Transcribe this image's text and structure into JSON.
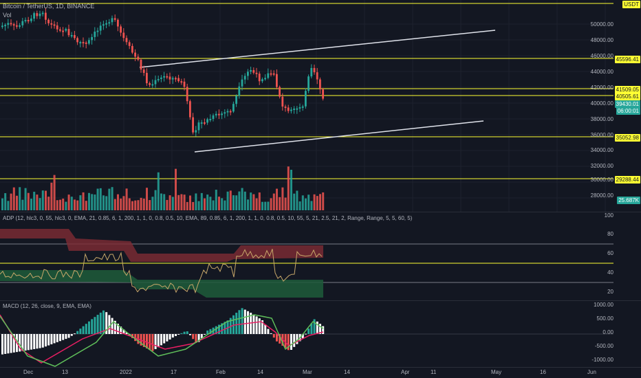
{
  "main": {
    "title": "Bitcoin / TetherUS, 1D, BINANCE",
    "vol_label": "Vol",
    "currency": "USDT",
    "price_ticks": [
      "50000.00",
      "48000.00",
      "46000.00",
      "44000.00",
      "42000.00",
      "40000.00",
      "38000.00",
      "36000.00",
      "34000.00",
      "32000.00",
      "30000.00",
      "28000.00"
    ],
    "level_tags": [
      "45596.41",
      "41509.05",
      "40505.61",
      "35052.98",
      "29288.44"
    ],
    "last_price": "39430.01",
    "countdown": "06:00:01",
    "volume_tag": "25.687K"
  },
  "adp": {
    "title": "ADP (12, hlc3, 0, 55, hlc3, 0, EMA, 21, 0.85, 6, 1, 200, 1, 1, 0, 0.8, 0.5, 10, EMA, 89, 0.85, 6, 1, 200, 1, 1, 0, 0.8, 0.5, 10, 55, 5, 21, 2.5, 21, 2, Range, Range, 5, 5, 60, 5)",
    "ticks": [
      "100",
      "80",
      "60",
      "40",
      "20"
    ]
  },
  "macd": {
    "title": "MACD (12, 26, close, 9, EMA, EMA)",
    "ticks": [
      "1000.00",
      "500.00",
      "0.00",
      "-500.00",
      "-1000.00"
    ]
  },
  "xaxis": [
    "Dec",
    "13",
    "2022",
    "17",
    "Feb",
    "14",
    "Mar",
    "14",
    "Apr",
    "11",
    "May",
    "16",
    "Jun"
  ],
  "colors": {
    "up": "#26a69a",
    "down": "#ef5350",
    "level": "#ffff33",
    "background": "#131722"
  }
}
